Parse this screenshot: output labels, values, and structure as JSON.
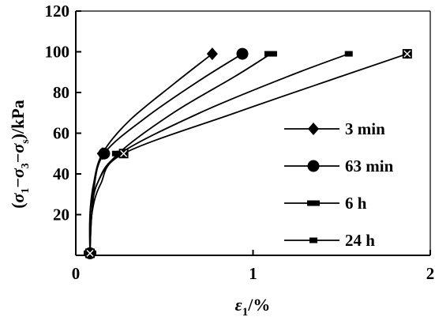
{
  "chart_data": {
    "type": "line",
    "xlabel": {
      "epsilon": "ε",
      "sub": "1",
      "suffix": "/%"
    },
    "ylabel": {
      "open_paren": "(",
      "sigma1": "σ",
      "sub1": "1",
      "minus1": "−",
      "sigma3": "σ",
      "sub3": "3",
      "minus2": "−",
      "sigmas": "σ",
      "subs": "s",
      "close": ")/kPa"
    },
    "xlim": [
      0,
      2
    ],
    "ylim": [
      0,
      120
    ],
    "xticks": [
      "0",
      "1",
      "2"
    ],
    "yticks": [
      "20",
      "40",
      "60",
      "80",
      "100",
      "120"
    ],
    "grid": false,
    "legend_position": "lower-right",
    "series": [
      {
        "name": "3 min",
        "marker": "diamond",
        "points": [
          [
            0.08,
            1
          ],
          [
            0.08,
            20
          ],
          [
            0.1,
            35
          ],
          [
            0.15,
            50
          ],
          [
            0.3,
            66
          ],
          [
            0.55,
            84
          ],
          [
            0.77,
            99
          ]
        ]
      },
      {
        "name": "63 min",
        "marker": "circle",
        "points": [
          [
            0.08,
            1
          ],
          [
            0.08,
            18
          ],
          [
            0.1,
            32
          ],
          [
            0.16,
            50
          ],
          [
            0.4,
            68
          ],
          [
            0.7,
            86
          ],
          [
            0.94,
            99
          ]
        ]
      },
      {
        "name": "6 h",
        "marker": "dash",
        "points": [
          [
            0.08,
            1
          ],
          [
            0.09,
            20
          ],
          [
            0.12,
            35
          ],
          [
            0.24,
            50
          ],
          [
            0.55,
            70
          ],
          [
            0.9,
            88
          ],
          [
            1.1,
            99
          ]
        ]
      },
      {
        "name": "24 h",
        "marker": "small-square",
        "points": [
          [
            0.08,
            1
          ],
          [
            0.09,
            20
          ],
          [
            0.12,
            35
          ],
          [
            0.25,
            50
          ],
          [
            0.7,
            70
          ],
          [
            1.2,
            88
          ],
          [
            1.54,
            99
          ]
        ]
      },
      {
        "name": "",
        "marker": "x-square",
        "points": [
          [
            0.08,
            1
          ],
          [
            0.09,
            20
          ],
          [
            0.14,
            35
          ],
          [
            0.27,
            50
          ],
          [
            0.9,
            70
          ],
          [
            1.5,
            88
          ],
          [
            1.87,
            99
          ]
        ]
      }
    ]
  }
}
